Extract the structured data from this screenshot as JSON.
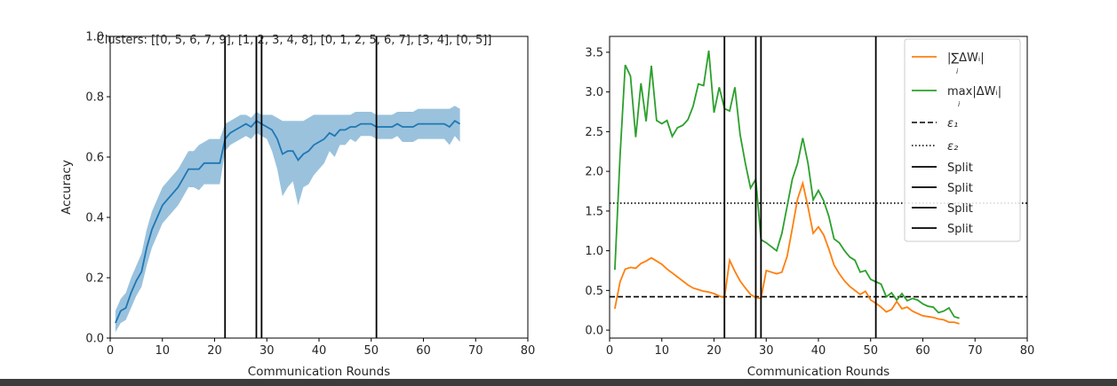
{
  "chart_data": [
    {
      "type": "line",
      "title": "Clusters: [[0, 5, 6, 7, 9], [1, 2, 3, 4, 8], [0, 1, 2, 5, 6, 7], [3, 4], [0, 5]]",
      "xlabel": "Communication Rounds",
      "ylabel": "Accuracy",
      "xlim": [
        0,
        80
      ],
      "ylim": [
        0,
        1.0
      ],
      "xticks": [
        "0",
        "10",
        "20",
        "30",
        "40",
        "50",
        "60",
        "70",
        "80"
      ],
      "yticks": [
        "0.0",
        "0.2",
        "0.4",
        "0.6",
        "0.8",
        "1.0"
      ],
      "grid": false,
      "colors": {
        "mean": "#1f77b4",
        "band": "#1f77b4",
        "split": "#000000"
      },
      "series": [
        {
          "x": [
            1,
            2,
            3,
            4,
            5,
            6,
            7,
            8,
            9,
            10,
            11,
            12,
            13,
            14,
            15,
            16,
            17,
            18,
            19,
            20,
            21,
            22,
            23,
            24,
            25,
            26,
            27,
            28,
            29,
            30,
            31,
            32,
            33,
            34,
            35,
            36,
            37,
            38,
            39,
            40,
            41,
            42,
            43,
            44,
            45,
            46,
            47,
            48,
            49,
            50,
            51,
            52,
            53,
            54,
            55,
            56,
            57,
            58,
            59,
            60,
            61,
            62,
            63,
            64,
            65,
            66,
            67
          ],
          "values": [
            0.05,
            0.09,
            0.1,
            0.15,
            0.19,
            0.22,
            0.3,
            0.36,
            0.4,
            0.44,
            0.46,
            0.48,
            0.5,
            0.53,
            0.56,
            0.56,
            0.56,
            0.58,
            0.58,
            0.58,
            0.58,
            0.66,
            0.68,
            0.69,
            0.7,
            0.71,
            0.7,
            0.72,
            0.71,
            0.7,
            0.69,
            0.66,
            0.61,
            0.62,
            0.62,
            0.59,
            0.61,
            0.62,
            0.64,
            0.65,
            0.66,
            0.68,
            0.67,
            0.69,
            0.69,
            0.7,
            0.7,
            0.71,
            0.71,
            0.71,
            0.7,
            0.7,
            0.7,
            0.7,
            0.71,
            0.7,
            0.7,
            0.7,
            0.71,
            0.71,
            0.71,
            0.71,
            0.71,
            0.71,
            0.7,
            0.72,
            0.71
          ],
          "upper": [
            0.09,
            0.13,
            0.15,
            0.2,
            0.24,
            0.28,
            0.36,
            0.42,
            0.46,
            0.5,
            0.52,
            0.54,
            0.56,
            0.59,
            0.62,
            0.62,
            0.64,
            0.65,
            0.66,
            0.66,
            0.66,
            0.71,
            0.72,
            0.73,
            0.74,
            0.74,
            0.73,
            0.75,
            0.74,
            0.74,
            0.74,
            0.73,
            0.72,
            0.72,
            0.72,
            0.72,
            0.72,
            0.73,
            0.74,
            0.74,
            0.74,
            0.74,
            0.74,
            0.74,
            0.74,
            0.74,
            0.75,
            0.75,
            0.75,
            0.75,
            0.74,
            0.74,
            0.74,
            0.74,
            0.75,
            0.75,
            0.75,
            0.75,
            0.76,
            0.76,
            0.76,
            0.76,
            0.76,
            0.76,
            0.76,
            0.77,
            0.76
          ],
          "lower": [
            0.02,
            0.05,
            0.06,
            0.1,
            0.14,
            0.17,
            0.24,
            0.3,
            0.34,
            0.38,
            0.4,
            0.42,
            0.44,
            0.47,
            0.5,
            0.5,
            0.49,
            0.51,
            0.51,
            0.51,
            0.51,
            0.62,
            0.64,
            0.65,
            0.66,
            0.67,
            0.66,
            0.68,
            0.67,
            0.66,
            0.62,
            0.56,
            0.47,
            0.5,
            0.52,
            0.44,
            0.5,
            0.51,
            0.54,
            0.56,
            0.58,
            0.62,
            0.6,
            0.64,
            0.64,
            0.66,
            0.65,
            0.67,
            0.67,
            0.67,
            0.66,
            0.66,
            0.66,
            0.66,
            0.67,
            0.65,
            0.65,
            0.65,
            0.66,
            0.66,
            0.66,
            0.66,
            0.66,
            0.66,
            0.64,
            0.67,
            0.65
          ]
        }
      ],
      "splits": [
        22,
        28,
        29,
        51
      ]
    },
    {
      "type": "line",
      "xlabel": "Communication Rounds",
      "xlim": [
        0,
        80
      ],
      "ylim": [
        -0.1,
        3.7
      ],
      "xticks": [
        "0",
        "10",
        "20",
        "30",
        "40",
        "50",
        "60",
        "70",
        "80"
      ],
      "yticks": [
        "0.0",
        "0.5",
        "1.0",
        "1.5",
        "2.0",
        "2.5",
        "3.0",
        "3.5"
      ],
      "ytick_values": [
        0,
        0.5,
        1.0,
        1.5,
        2.0,
        2.5,
        3.0,
        3.5
      ],
      "grid": false,
      "legend_position": "top-right",
      "legend": [
        "|∑ΔWᵢ|",
        "max|ΔWᵢ|",
        "ε₁",
        "ε₂",
        "Split",
        "Split",
        "Split",
        "Split"
      ],
      "legend_subscript": [
        "i",
        "i"
      ],
      "series": [
        {
          "color": "#ff7f0e",
          "x": [
            1,
            2,
            3,
            4,
            5,
            6,
            7,
            8,
            9,
            10,
            11,
            12,
            13,
            14,
            15,
            16,
            17,
            18,
            19,
            20,
            21,
            22,
            23,
            24,
            25,
            26,
            27,
            28,
            29,
            30,
            31,
            32,
            33,
            34,
            35,
            36,
            37,
            38,
            39,
            40,
            41,
            42,
            43,
            44,
            45,
            46,
            47,
            48,
            49,
            50,
            51,
            52,
            53,
            54,
            55,
            56,
            57,
            58,
            59,
            60,
            61,
            62,
            63,
            64,
            65,
            66,
            67
          ],
          "values": [
            0.27,
            0.61,
            0.77,
            0.79,
            0.78,
            0.84,
            0.87,
            0.91,
            0.87,
            0.83,
            0.77,
            0.72,
            0.67,
            0.62,
            0.57,
            0.53,
            0.51,
            0.49,
            0.48,
            0.46,
            0.43,
            0.41,
            0.88,
            0.74,
            0.62,
            0.53,
            0.45,
            0.41,
            0.4,
            0.75,
            0.73,
            0.71,
            0.73,
            0.93,
            1.28,
            1.65,
            1.85,
            1.55,
            1.22,
            1.3,
            1.2,
            1.02,
            0.82,
            0.71,
            0.62,
            0.55,
            0.5,
            0.45,
            0.49,
            0.38,
            0.34,
            0.29,
            0.23,
            0.26,
            0.36,
            0.27,
            0.29,
            0.24,
            0.21,
            0.18,
            0.17,
            0.16,
            0.14,
            0.13,
            0.1,
            0.1,
            0.08
          ]
        },
        {
          "color": "#2ca02c",
          "x": [
            1,
            2,
            3,
            4,
            5,
            6,
            7,
            8,
            9,
            10,
            11,
            12,
            13,
            14,
            15,
            16,
            17,
            18,
            19,
            20,
            21,
            22,
            23,
            24,
            25,
            26,
            27,
            28,
            29,
            30,
            31,
            32,
            33,
            34,
            35,
            36,
            37,
            38,
            39,
            40,
            41,
            42,
            43,
            44,
            45,
            46,
            47,
            48,
            49,
            50,
            51,
            52,
            53,
            54,
            55,
            56,
            57,
            58,
            59,
            60,
            61,
            62,
            63,
            64,
            65,
            66,
            67
          ],
          "values": [
            0.76,
            2.2,
            3.34,
            3.2,
            2.43,
            3.11,
            2.63,
            3.33,
            2.64,
            2.6,
            2.64,
            2.44,
            2.55,
            2.58,
            2.65,
            2.82,
            3.1,
            3.08,
            3.52,
            2.74,
            3.06,
            2.79,
            2.76,
            3.06,
            2.46,
            2.1,
            1.79,
            1.9,
            1.14,
            1.1,
            1.05,
            1.0,
            1.22,
            1.56,
            1.9,
            2.1,
            2.42,
            2.1,
            1.64,
            1.76,
            1.63,
            1.43,
            1.15,
            1.1,
            1.0,
            0.92,
            0.88,
            0.73,
            0.75,
            0.64,
            0.61,
            0.58,
            0.42,
            0.47,
            0.38,
            0.46,
            0.37,
            0.4,
            0.38,
            0.33,
            0.3,
            0.29,
            0.22,
            0.24,
            0.28,
            0.17,
            0.15
          ]
        }
      ],
      "thresholds": [
        {
          "label": "ε₁",
          "y": 0.42,
          "style": "dashed"
        },
        {
          "label": "ε₂",
          "y": 1.6,
          "style": "dotted"
        }
      ],
      "splits": [
        22,
        28,
        29,
        51
      ]
    }
  ]
}
